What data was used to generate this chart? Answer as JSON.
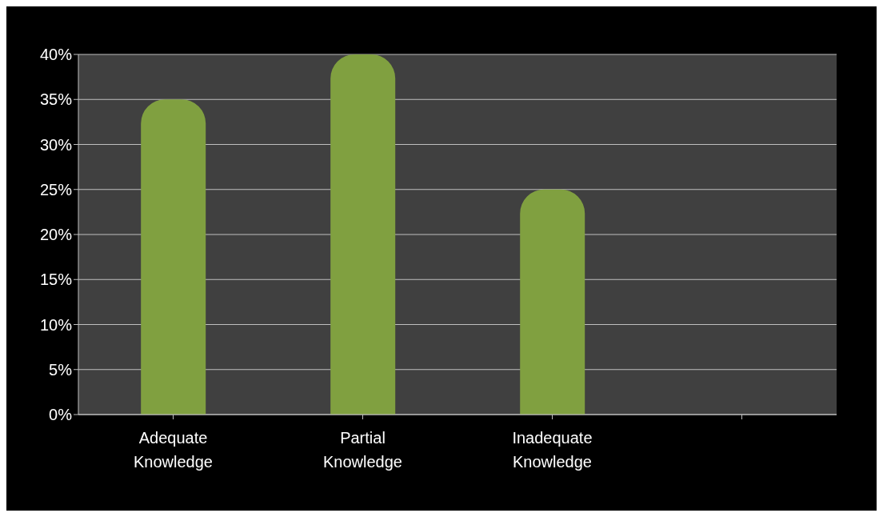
{
  "chart_data": {
    "type": "bar",
    "categories": [
      "Adequate Knowledge",
      "Partial Knowledge",
      "Inadequate Knowledge",
      null
    ],
    "series": [
      {
        "color": "#80a040",
        "values": [
          35,
          40,
          25,
          null
        ]
      }
    ],
    "ylim": [
      0,
      40
    ],
    "yticks": [
      {
        "value": 0,
        "label": "0%"
      },
      {
        "value": 5,
        "label": "5%"
      },
      {
        "value": 10,
        "label": "10%"
      },
      {
        "value": 15,
        "label": "15%"
      },
      {
        "value": 20,
        "label": "20%"
      },
      {
        "value": 25,
        "label": "25%"
      },
      {
        "value": 30,
        "label": "30%"
      },
      {
        "value": 35,
        "label": "35%"
      },
      {
        "value": 40,
        "label": "40%"
      }
    ],
    "grid": "y"
  }
}
